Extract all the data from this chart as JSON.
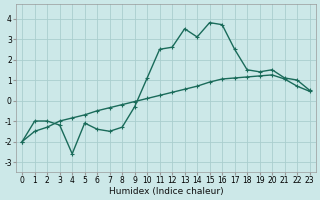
{
  "title": "",
  "xlabel": "Humidex (Indice chaleur)",
  "background_color": "#cce8e8",
  "grid_color": "#aacece",
  "line_color": "#1a6b5a",
  "xlim": [
    -0.5,
    23.5
  ],
  "ylim": [
    -3.5,
    4.7
  ],
  "x_ticks": [
    0,
    1,
    2,
    3,
    4,
    5,
    6,
    7,
    8,
    9,
    10,
    11,
    12,
    13,
    14,
    15,
    16,
    17,
    18,
    19,
    20,
    21,
    22,
    23
  ],
  "y_ticks": [
    -3,
    -2,
    -1,
    0,
    1,
    2,
    3,
    4
  ],
  "curve1_x": [
    0,
    1,
    2,
    3,
    4,
    5,
    6,
    7,
    8,
    9,
    10,
    11,
    12,
    13,
    14,
    15,
    16,
    17,
    18,
    19,
    20,
    21,
    22,
    23
  ],
  "curve1_y": [
    -2.0,
    -1.0,
    -1.0,
    -1.2,
    -2.6,
    -1.1,
    -1.4,
    -1.5,
    -1.3,
    -0.3,
    1.1,
    2.5,
    2.6,
    3.5,
    3.1,
    3.8,
    3.7,
    2.5,
    1.5,
    1.4,
    1.5,
    1.1,
    1.0,
    0.5
  ],
  "curve2_x": [
    0,
    1,
    2,
    3,
    4,
    5,
    6,
    7,
    8,
    9,
    10,
    11,
    12,
    13,
    14,
    15,
    16,
    17,
    18,
    19,
    20,
    21,
    22,
    23
  ],
  "curve2_y": [
    -2.0,
    -1.5,
    -1.3,
    -1.0,
    -0.85,
    -0.7,
    -0.5,
    -0.35,
    -0.2,
    -0.05,
    0.1,
    0.25,
    0.4,
    0.55,
    0.7,
    0.9,
    1.05,
    1.1,
    1.15,
    1.2,
    1.25,
    1.05,
    0.7,
    0.45
  ],
  "line_width": 1.0,
  "marker": "+",
  "marker_size": 3.5,
  "marker_lw": 0.8,
  "tick_fontsize": 5.5,
  "xlabel_fontsize": 6.5
}
